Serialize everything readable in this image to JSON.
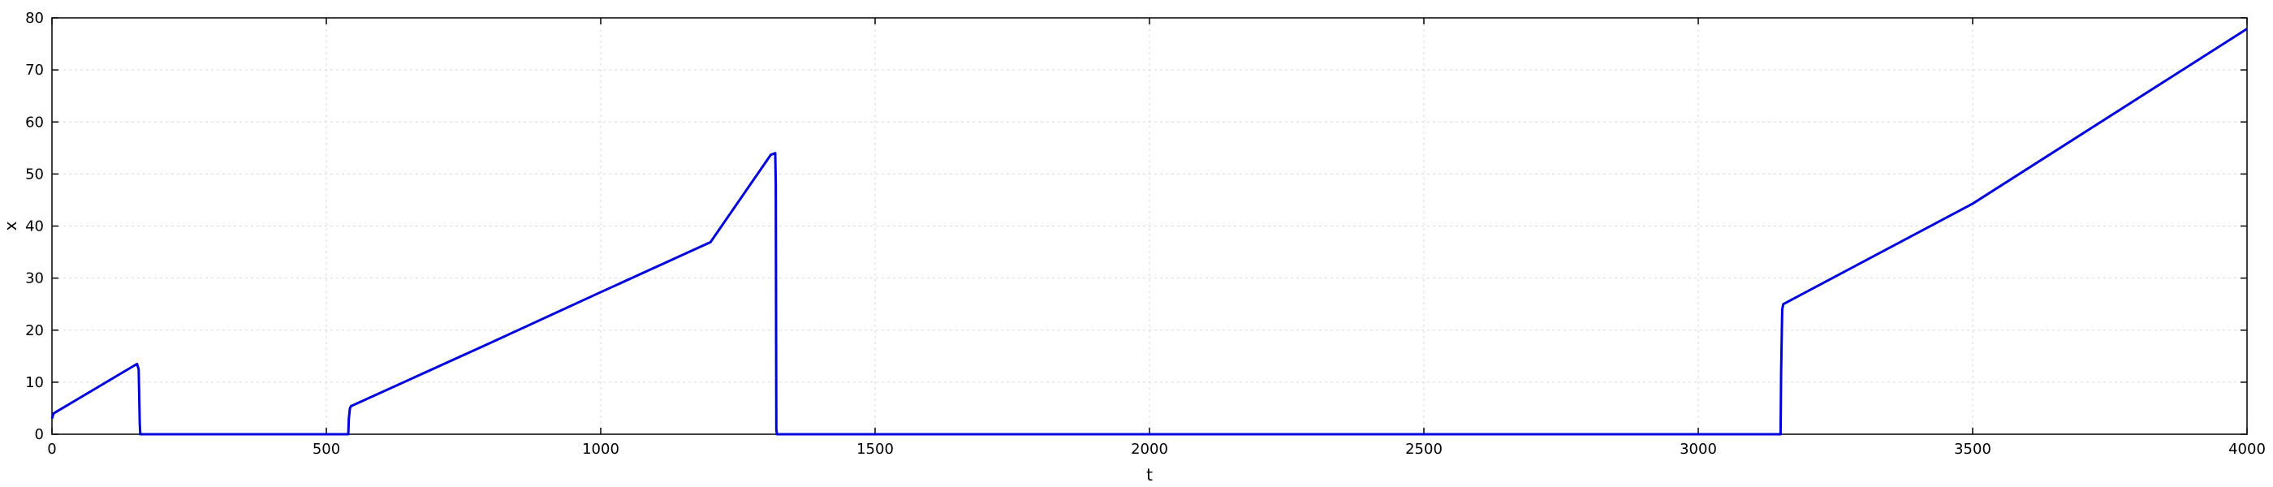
{
  "chart_data": {
    "type": "line",
    "title": "",
    "xlabel": "t",
    "ylabel": "x",
    "xlim": [
      0,
      4000
    ],
    "ylim": [
      0,
      80
    ],
    "xticks": [
      0,
      500,
      1000,
      1500,
      2000,
      2500,
      3000,
      3500,
      4000
    ],
    "yticks": [
      0,
      10,
      20,
      30,
      40,
      50,
      60,
      70,
      80
    ],
    "grid": true,
    "legend": "none",
    "series": [
      {
        "color": "#0000dd",
        "x": [
          0,
          3,
          150,
          155,
          158,
          160,
          161,
          300,
          500,
          540,
          541,
          543,
          545,
          800,
          1000,
          1200,
          1310,
          1318,
          1319,
          1320,
          1321,
          1500,
          2000,
          2500,
          3000,
          3150,
          3151,
          3153,
          3155,
          3500,
          4000
        ],
        "y": [
          3,
          4,
          13.2,
          13.5,
          12.5,
          2,
          0,
          0,
          0,
          0,
          3,
          5,
          5.4,
          17.6,
          27.3,
          36.9,
          53.7,
          54.0,
          48,
          1,
          0,
          0,
          0,
          0,
          0,
          0,
          12,
          24,
          25,
          44.3,
          77.9
        ]
      }
    ]
  }
}
